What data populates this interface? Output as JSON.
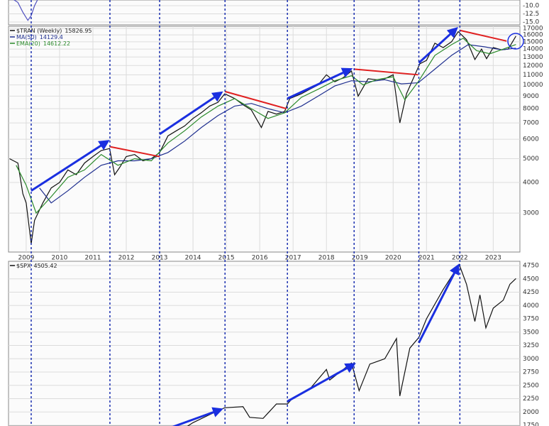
{
  "chart_data": [
    {
      "type": "line",
      "log_scale": false,
      "grid": true,
      "xlim": [
        2008.47,
        2023.8
      ],
      "ylim": [
        -15.87,
        -8.26
      ],
      "yticks": [
        {
          "value": -10,
          "label": "-10.0"
        },
        {
          "value": -12.5,
          "label": "-12.5"
        },
        {
          "value": -15,
          "label": "-15.0"
        }
      ],
      "series": [
        {
          "color": "#5050c0",
          "x": [
            2008.6,
            2008.75,
            2008.9,
            2009.05,
            2009.15,
            2009.25,
            2009.35
          ],
          "values": [
            -8,
            -9,
            -12,
            -14.5,
            -13,
            -10,
            -8
          ]
        }
      ]
    },
    {
      "type": "line",
      "log_scale": true,
      "grid": true,
      "xlim": [
        2008.47,
        2023.8
      ],
      "ylim": [
        2080,
        17350
      ],
      "xticks": [
        2009,
        2010,
        2011,
        2012,
        2013,
        2014,
        2015,
        2016,
        2017,
        2018,
        2019,
        2020,
        2021,
        2022,
        2023
      ],
      "yticks": [
        3000,
        4000,
        5000,
        6000,
        7000,
        8000,
        9000,
        10000,
        11000,
        12000,
        13000,
        14000,
        15000,
        16000,
        17000
      ],
      "vlines": [
        2009.15,
        2011.51,
        2013.0,
        2014.96,
        2016.83,
        2018.83,
        2020.77,
        2022.0
      ],
      "series": [
        {
          "name": "$TRAN (Weekly)",
          "last": 15826.95,
          "color": "#111111",
          "x": [
            2008.5,
            2008.75,
            2008.9,
            2009.0,
            2009.15,
            2009.25,
            2009.5,
            2009.75,
            2010.0,
            2010.25,
            2010.5,
            2010.75,
            2011.0,
            2011.25,
            2011.5,
            2011.65,
            2011.8,
            2012.0,
            2012.25,
            2012.5,
            2012.75,
            2013.0,
            2013.25,
            2013.5,
            2013.75,
            2014.0,
            2014.25,
            2014.5,
            2014.75,
            2014.95,
            2015.25,
            2015.5,
            2015.75,
            2016.05,
            2016.25,
            2016.5,
            2016.75,
            2016.9,
            2017.25,
            2017.5,
            2017.75,
            2018.0,
            2018.25,
            2018.5,
            2018.75,
            2018.95,
            2019.25,
            2019.5,
            2019.75,
            2020.0,
            2020.2,
            2020.4,
            2020.6,
            2020.8,
            2021.0,
            2021.25,
            2021.5,
            2021.75,
            2021.95,
            2022.2,
            2022.45,
            2022.65,
            2022.8,
            2023.0,
            2023.25,
            2023.45,
            2023.68
          ],
          "values": [
            5000,
            4800,
            3600,
            3300,
            2250,
            2800,
            3300,
            3800,
            4000,
            4500,
            4300,
            4800,
            5100,
            5400,
            5500,
            4300,
            4600,
            5100,
            5200,
            4900,
            5000,
            5300,
            6200,
            6500,
            6800,
            7300,
            7700,
            8200,
            8500,
            9200,
            8800,
            8300,
            7900,
            6700,
            7800,
            7600,
            7800,
            8800,
            9200,
            9600,
            10000,
            11000,
            10300,
            10700,
            11400,
            9000,
            10600,
            10500,
            10600,
            11000,
            7000,
            9200,
            10600,
            12200,
            12600,
            14800,
            14200,
            15000,
            16500,
            15300,
            12700,
            14000,
            12800,
            14200,
            13900,
            14000,
            15826.95
          ]
        },
        {
          "name": "MA(50)",
          "last": 14129.4,
          "color": "#1f2f8f",
          "x": [
            2009.4,
            2009.75,
            2010.25,
            2010.75,
            2011.25,
            2011.75,
            2012.25,
            2012.75,
            2013.25,
            2013.75,
            2014.25,
            2014.75,
            2015.25,
            2015.75,
            2016.25,
            2016.75,
            2017.25,
            2017.75,
            2018.25,
            2018.75,
            2019.25,
            2019.75,
            2020.25,
            2020.75,
            2021.25,
            2021.75,
            2022.25,
            2022.75,
            2023.25,
            2023.68
          ],
          "values": [
            3800,
            3300,
            3700,
            4200,
            4700,
            4900,
            4900,
            5000,
            5300,
            5900,
            6700,
            7500,
            8200,
            8400,
            8000,
            7700,
            8200,
            9000,
            9900,
            10400,
            10300,
            10500,
            10100,
            10200,
            11600,
            13200,
            14600,
            14300,
            13900,
            14129.4
          ]
        },
        {
          "name": "EMA(20)",
          "last": 14612.22,
          "color": "#2a8a2a",
          "x": [
            2008.7,
            2009.0,
            2009.3,
            2009.75,
            2010.25,
            2010.75,
            2011.25,
            2011.75,
            2012.25,
            2012.75,
            2013.25,
            2013.75,
            2014.25,
            2014.75,
            2015.25,
            2015.75,
            2016.25,
            2016.75,
            2017.25,
            2017.75,
            2018.25,
            2018.75,
            2019.1,
            2019.5,
            2020.0,
            2020.35,
            2020.75,
            2021.25,
            2021.75,
            2022.1,
            2022.5,
            2022.9,
            2023.3,
            2023.68
          ],
          "values": [
            4700,
            3900,
            3000,
            3500,
            4200,
            4500,
            5200,
            4700,
            5000,
            4900,
            5800,
            6500,
            7400,
            8200,
            8800,
            8000,
            7300,
            7700,
            8900,
            9600,
            10400,
            10900,
            10000,
            10500,
            10800,
            8700,
            10300,
            13200,
            14600,
            15500,
            13800,
            13400,
            14000,
            14612.22
          ]
        }
      ],
      "trend_lines": [
        {
          "color": "#1a2fe0",
          "arrow": true,
          "x": [
            2009.15,
            2011.45
          ],
          "y": [
            3700,
            5900
          ]
        },
        {
          "color": "#1a2fe0",
          "arrow": true,
          "x": [
            2013.0,
            2014.85
          ],
          "y": [
            6300,
            9300
          ]
        },
        {
          "color": "#1a2fe0",
          "arrow": true,
          "x": [
            2016.83,
            2018.73
          ],
          "y": [
            8800,
            11600
          ]
        },
        {
          "color": "#1a2fe0",
          "arrow": true,
          "x": [
            2020.77,
            2021.9
          ],
          "y": [
            12300,
            17000
          ]
        },
        {
          "color": "#e02020",
          "arrow": false,
          "x": [
            2011.5,
            2013.0
          ],
          "y": [
            5600,
            5100
          ]
        },
        {
          "color": "#e02020",
          "arrow": false,
          "x": [
            2014.96,
            2016.8
          ],
          "y": [
            9400,
            8000
          ]
        },
        {
          "color": "#e02020",
          "arrow": false,
          "x": [
            2018.83,
            2020.75
          ],
          "y": [
            11600,
            11000
          ]
        },
        {
          "color": "#e02020",
          "arrow": false,
          "x": [
            2022.0,
            2023.4
          ],
          "y": [
            16700,
            15100
          ]
        }
      ]
    },
    {
      "type": "line",
      "log_scale": false,
      "grid": true,
      "xlim": [
        2008.47,
        2023.8
      ],
      "ylim": [
        1737,
        4830
      ],
      "yticks": [
        1750,
        2000,
        2250,
        2500,
        2750,
        3000,
        3250,
        3500,
        3750,
        4000,
        4250,
        4500,
        4750
      ],
      "series": [
        {
          "name": "$SPX",
          "last": 4505.42,
          "color": "#111111",
          "x": [
            2013.75,
            2014.0,
            2014.5,
            2014.95,
            2015.5,
            2015.7,
            2016.1,
            2016.5,
            2016.83,
            2017.0,
            2017.5,
            2018.0,
            2018.1,
            2018.75,
            2018.98,
            2019.3,
            2019.75,
            2020.1,
            2020.2,
            2020.5,
            2020.77,
            2021.0,
            2021.5,
            2021.98,
            2022.2,
            2022.45,
            2022.6,
            2022.78,
            2023.0,
            2023.3,
            2023.5,
            2023.68
          ],
          "values": [
            1700,
            1800,
            1950,
            2080,
            2100,
            1900,
            1880,
            2150,
            2150,
            2270,
            2430,
            2800,
            2600,
            2920,
            2400,
            2900,
            3000,
            3380,
            2300,
            3200,
            3400,
            3750,
            4300,
            4770,
            4400,
            3700,
            4200,
            3580,
            3950,
            4100,
            4400,
            4505.42
          ]
        }
      ],
      "trend_lines": [
        {
          "color": "#1a2fe0",
          "arrow": true,
          "x": [
            2013.3,
            2014.85
          ],
          "y": [
            1700,
            2050
          ]
        },
        {
          "color": "#1a2fe0",
          "arrow": true,
          "x": [
            2016.83,
            2018.83
          ],
          "y": [
            2200,
            2900
          ]
        },
        {
          "color": "#1a2fe0",
          "arrow": true,
          "x": [
            2020.77,
            2021.95
          ],
          "y": [
            3300,
            4750
          ]
        }
      ]
    }
  ]
}
